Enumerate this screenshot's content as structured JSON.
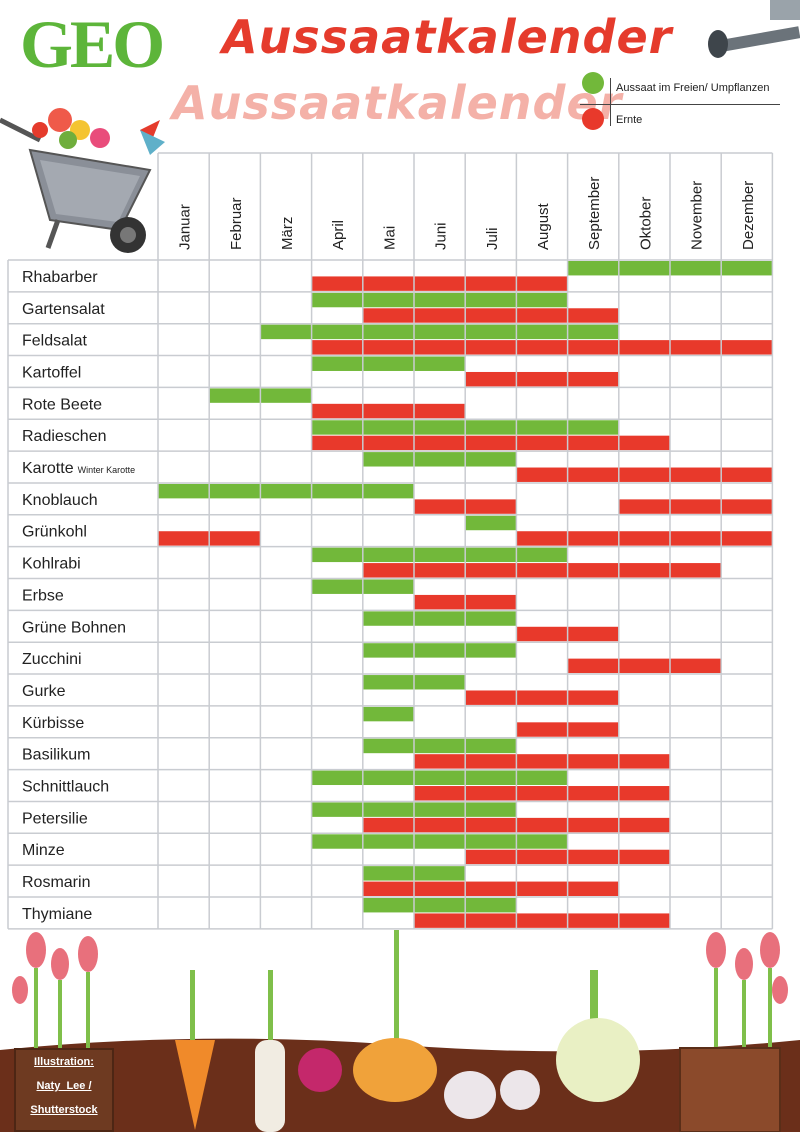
{
  "header": {
    "logo": "GEO",
    "title": "Aussaatkalender"
  },
  "legend": {
    "items": [
      {
        "label": "Aussaat im Freien/ Umpflanzen",
        "color": "#72b83a"
      },
      {
        "label": "Ernte",
        "color": "#e8392b"
      }
    ]
  },
  "credit": {
    "lines": [
      "Illustration:",
      "Naty_Lee /",
      "Shutterstock"
    ]
  },
  "chart_data": {
    "type": "table",
    "months": [
      "Januar",
      "Februar",
      "März",
      "April",
      "Mai",
      "Juni",
      "Juli",
      "August",
      "September",
      "Oktober",
      "November",
      "Dezember"
    ],
    "series": [
      {
        "name": "Aussaat im Freien/ Umpflanzen",
        "color": "#72b83a"
      },
      {
        "name": "Ernte",
        "color": "#e8392b"
      }
    ],
    "rows": [
      {
        "name": "Rhabarber",
        "note": "",
        "aussaat": [
          9,
          10,
          11,
          12
        ],
        "ernte": [
          4,
          5,
          6,
          7,
          8
        ]
      },
      {
        "name": "Gartensalat",
        "note": "",
        "aussaat": [
          4,
          5,
          6,
          7,
          8
        ],
        "ernte": [
          5,
          6,
          7,
          8,
          9
        ]
      },
      {
        "name": "Feldsalat",
        "note": "",
        "aussaat": [
          3,
          4,
          5,
          6,
          7,
          8,
          9
        ],
        "ernte": [
          4,
          5,
          6,
          7,
          8,
          9,
          10,
          11,
          12
        ]
      },
      {
        "name": "Kartoffel",
        "note": "",
        "aussaat": [
          4,
          5,
          6
        ],
        "ernte": [
          7,
          8,
          9
        ]
      },
      {
        "name": "Rote Beete",
        "note": "",
        "aussaat": [
          2,
          3
        ],
        "ernte": [
          4,
          5,
          6
        ]
      },
      {
        "name": "Radieschen",
        "note": "",
        "aussaat": [
          4,
          5,
          6,
          7,
          8,
          9
        ],
        "ernte": [
          4,
          5,
          6,
          7,
          8,
          9,
          10
        ]
      },
      {
        "name": "Karotte",
        "note": "Winter Karotte",
        "aussaat": [
          5,
          6,
          7
        ],
        "ernte": [
          8,
          9,
          10,
          11,
          12
        ]
      },
      {
        "name": "Knoblauch",
        "note": "",
        "aussaat": [
          1,
          2,
          3,
          4,
          5
        ],
        "ernte": [
          6,
          7,
          10,
          11,
          12
        ]
      },
      {
        "name": "Grünkohl",
        "note": "",
        "aussaat": [
          7
        ],
        "ernte": [
          1,
          2,
          8,
          9,
          10,
          11,
          12
        ]
      },
      {
        "name": "Kohlrabi",
        "note": "",
        "aussaat": [
          4,
          5,
          6,
          7,
          8
        ],
        "ernte": [
          5,
          6,
          7,
          8,
          9,
          10,
          11
        ]
      },
      {
        "name": "Erbse",
        "note": "",
        "aussaat": [
          4,
          5
        ],
        "ernte": [
          6,
          7
        ]
      },
      {
        "name": "Grüne Bohnen",
        "note": "",
        "aussaat": [
          5,
          6,
          7
        ],
        "ernte": [
          8,
          9
        ]
      },
      {
        "name": "Zucchini",
        "note": "",
        "aussaat": [
          5,
          6,
          7
        ],
        "ernte": [
          9,
          10,
          11
        ]
      },
      {
        "name": "Gurke",
        "note": "",
        "aussaat": [
          5,
          6
        ],
        "ernte": [
          7,
          8,
          9
        ]
      },
      {
        "name": "Kürbisse",
        "note": "",
        "aussaat": [
          5
        ],
        "ernte": [
          8,
          9
        ]
      },
      {
        "name": "Basilikum",
        "note": "",
        "aussaat": [
          5,
          6,
          7
        ],
        "ernte": [
          6,
          7,
          8,
          9,
          10
        ]
      },
      {
        "name": "Schnittlauch",
        "note": "",
        "aussaat": [
          4,
          5,
          6,
          7,
          8
        ],
        "ernte": [
          6,
          7,
          8,
          9,
          10
        ]
      },
      {
        "name": "Petersilie",
        "note": "",
        "aussaat": [
          4,
          5,
          6,
          7
        ],
        "ernte": [
          5,
          6,
          7,
          8,
          9,
          10
        ]
      },
      {
        "name": "Minze",
        "note": "",
        "aussaat": [
          4,
          5,
          6,
          7,
          8
        ],
        "ernte": [
          7,
          8,
          9,
          10
        ]
      },
      {
        "name": "Rosmarin",
        "note": "",
        "aussaat": [
          5,
          6
        ],
        "ernte": [
          5,
          6,
          7,
          8,
          9
        ]
      },
      {
        "name": "Thymiane",
        "note": "",
        "aussaat": [
          5,
          6,
          7
        ],
        "ernte": [
          6,
          7,
          8,
          9,
          10
        ]
      }
    ]
  }
}
